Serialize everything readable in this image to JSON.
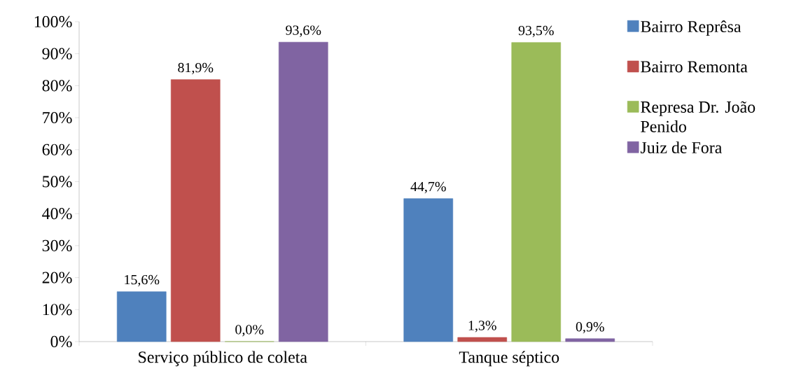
{
  "chart_data": {
    "type": "bar",
    "categories": [
      "Serviço público de coleta",
      "Tanque séptico"
    ],
    "series": [
      {
        "name": "Bairro Reprêsa",
        "color": "#4f81bd",
        "values": [
          15.6,
          44.7
        ],
        "value_labels": [
          "15,6%",
          "44,7%"
        ]
      },
      {
        "name": "Bairro Remonta",
        "color": "#c0504d",
        "values": [
          81.9,
          1.3
        ],
        "value_labels": [
          "81,9%",
          "1,3%"
        ]
      },
      {
        "name": "Represa Dr. João Penido",
        "color": "#9bbb59",
        "values": [
          0.0,
          93.5
        ],
        "value_labels": [
          "0,0%",
          "93,5%"
        ]
      },
      {
        "name": "Juiz de Fora",
        "color": "#8064a2",
        "values": [
          93.6,
          0.9
        ],
        "value_labels": [
          "93,6%",
          "0,9%"
        ]
      }
    ],
    "ylim": [
      0,
      100
    ],
    "yticks": [
      {
        "value": 0,
        "label": "0%"
      },
      {
        "value": 10,
        "label": "10%"
      },
      {
        "value": 20,
        "label": "20%"
      },
      {
        "value": 30,
        "label": "30%"
      },
      {
        "value": 40,
        "label": "40%"
      },
      {
        "value": 50,
        "label": "50%"
      },
      {
        "value": 60,
        "label": "60%"
      },
      {
        "value": 70,
        "label": "70%"
      },
      {
        "value": 80,
        "label": "80%"
      },
      {
        "value": 90,
        "label": "90%"
      },
      {
        "value": 100,
        "label": "100%"
      }
    ],
    "legend": "right"
  }
}
